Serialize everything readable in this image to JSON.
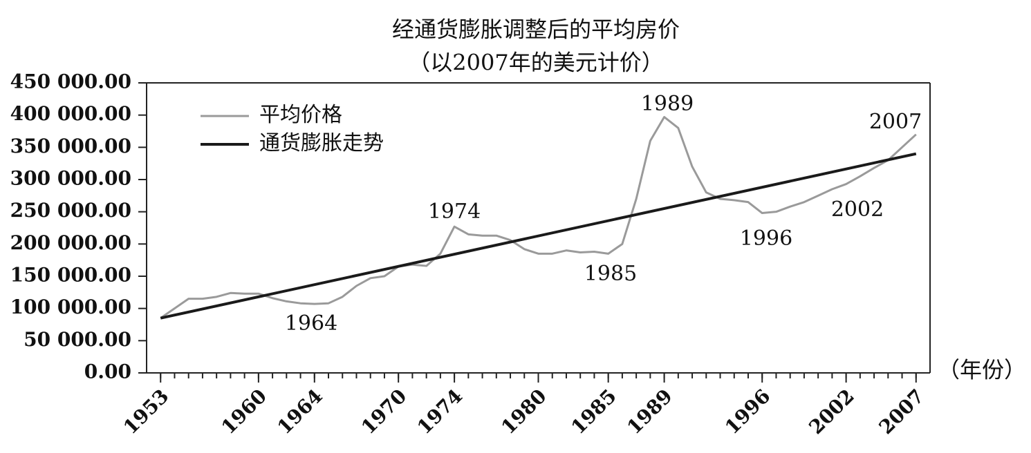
{
  "chart_data": {
    "type": "line",
    "title": "经通货膨胀调整后的平均房价",
    "subtitle": "（以2007年的美元计价）",
    "x_label": "（年份）",
    "xlim": [
      1952,
      2008
    ],
    "xticks": [
      1953,
      1960,
      1964,
      1970,
      1974,
      1980,
      1985,
      1989,
      1996,
      2002,
      2007
    ],
    "ylim": [
      0,
      450000
    ],
    "yticks": [
      {
        "value": 0,
        "label": "0.00"
      },
      {
        "value": 50000,
        "label": "50 000.00"
      },
      {
        "value": 100000,
        "label": "100 000.00"
      },
      {
        "value": 150000,
        "label": "150 000.00"
      },
      {
        "value": 200000,
        "label": "200 000.00"
      },
      {
        "value": 250000,
        "label": "250 000.00"
      },
      {
        "value": 300000,
        "label": "300 000.00"
      },
      {
        "value": 350000,
        "label": "350 000.00"
      },
      {
        "value": 400000,
        "label": "400 000.00"
      },
      {
        "value": 450000,
        "label": "450 000.00"
      }
    ],
    "grid": false,
    "legend": "upper-left",
    "series": [
      {
        "name": "平均价格",
        "color": "#9a9a9a",
        "x": [
          1953,
          1954,
          1955,
          1956,
          1957,
          1958,
          1959,
          1960,
          1961,
          1962,
          1963,
          1964,
          1965,
          1966,
          1967,
          1968,
          1969,
          1970,
          1971,
          1972,
          1973,
          1974,
          1975,
          1976,
          1977,
          1978,
          1979,
          1980,
          1981,
          1982,
          1983,
          1984,
          1985,
          1986,
          1987,
          1988,
          1989,
          1990,
          1991,
          1992,
          1993,
          1994,
          1995,
          1996,
          1997,
          1998,
          1999,
          2000,
          2001,
          2002,
          2003,
          2004,
          2005,
          2006,
          2007
        ],
        "values": [
          85000,
          100000,
          115000,
          115000,
          118000,
          124000,
          123000,
          123000,
          116000,
          111000,
          108000,
          107000,
          108000,
          118000,
          135000,
          147000,
          150000,
          165000,
          168000,
          166000,
          185000,
          227000,
          215000,
          213000,
          213000,
          206000,
          192000,
          185000,
          185000,
          190000,
          187000,
          188000,
          185000,
          200000,
          270000,
          360000,
          397000,
          380000,
          320000,
          280000,
          270000,
          268000,
          265000,
          248000,
          250000,
          258000,
          265000,
          275000,
          285000,
          293000,
          305000,
          318000,
          330000,
          350000,
          370000
        ]
      },
      {
        "name": "通货膨胀走势",
        "color": "#1a1a1a",
        "x": [
          1953,
          2007
        ],
        "values": [
          85000,
          340000
        ]
      }
    ],
    "annotations": [
      "1964",
      "1974",
      "1985",
      "1989",
      "1996",
      "2002",
      "2007"
    ]
  }
}
